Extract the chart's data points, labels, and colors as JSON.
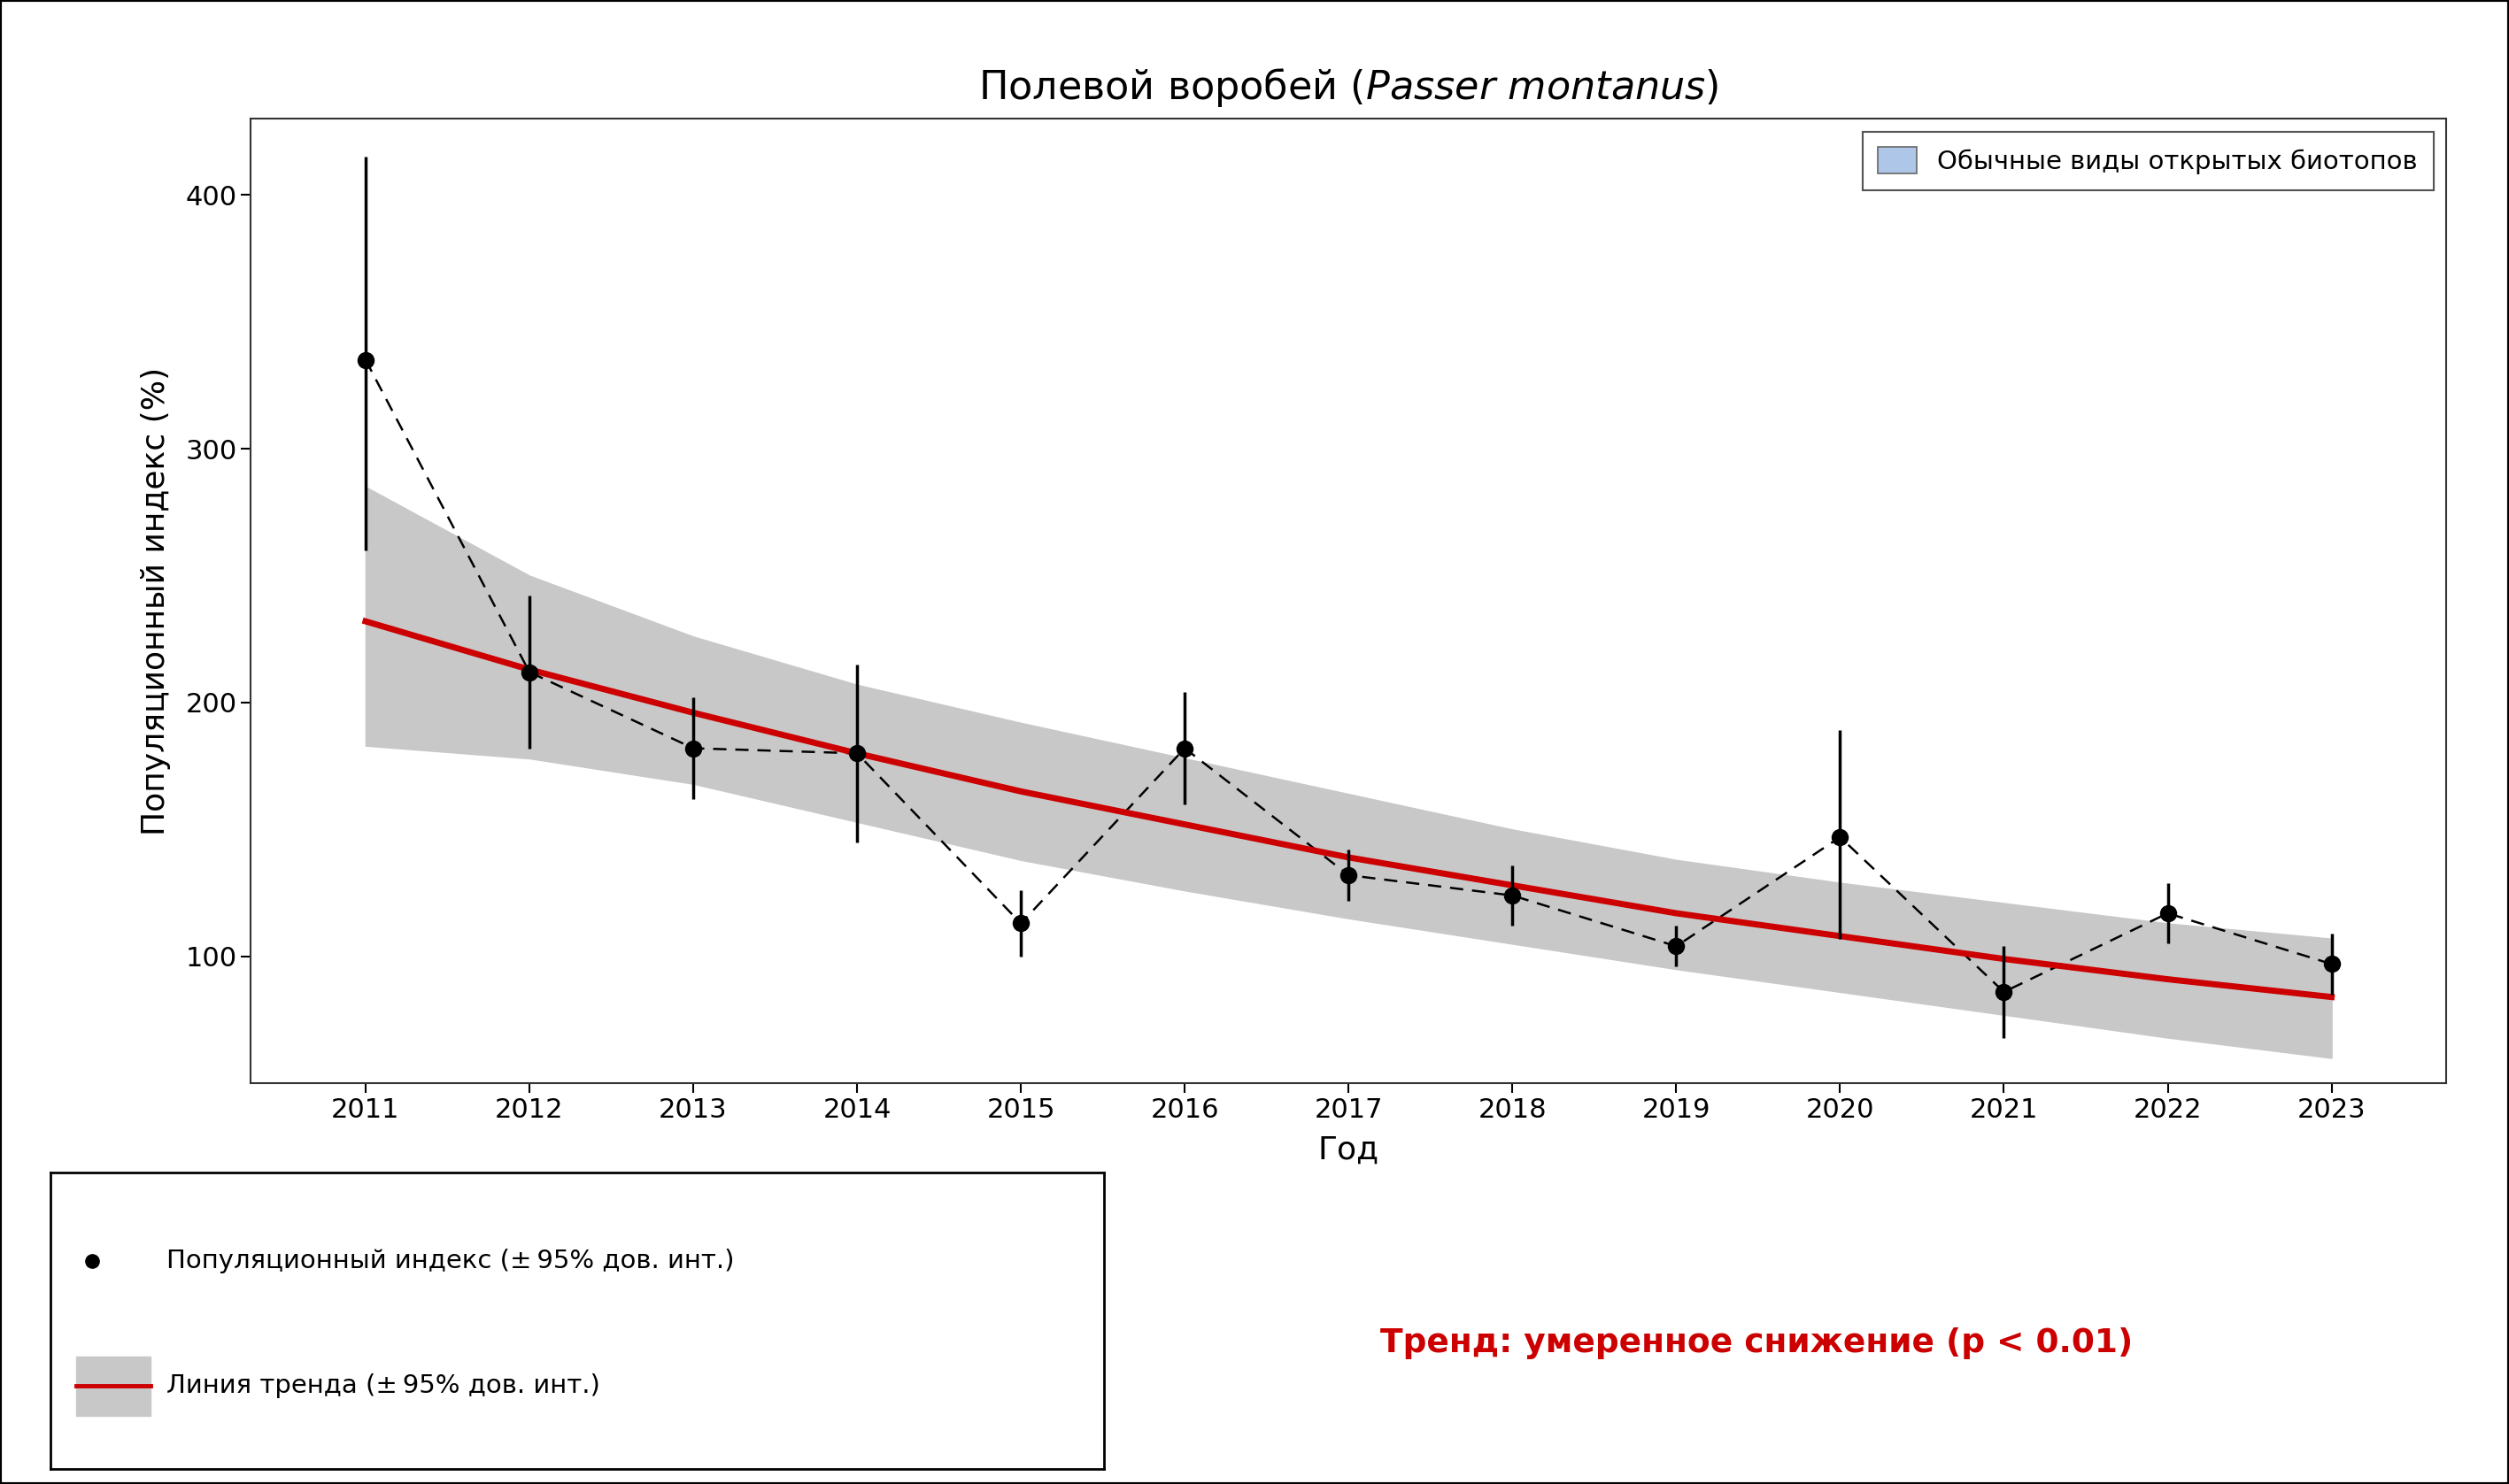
{
  "xlabel": "Год",
  "ylabel": "Популяционный индекс (%)",
  "years": [
    2011,
    2012,
    2013,
    2014,
    2015,
    2016,
    2017,
    2018,
    2019,
    2020,
    2021,
    2022,
    2023
  ],
  "values": [
    335,
    212,
    182,
    180,
    113,
    182,
    132,
    124,
    104,
    147,
    86,
    117,
    97
  ],
  "yerr_lower": [
    75,
    30,
    20,
    35,
    13,
    22,
    10,
    12,
    8,
    40,
    18,
    12,
    12
  ],
  "yerr_upper": [
    80,
    30,
    20,
    35,
    13,
    22,
    10,
    12,
    8,
    42,
    18,
    12,
    12
  ],
  "trend_values": [
    232,
    213,
    196,
    180,
    165,
    152,
    139,
    128,
    117,
    108,
    99,
    91,
    84
  ],
  "trend_ci_low": [
    183,
    178,
    168,
    153,
    138,
    126,
    115,
    105,
    95,
    86,
    77,
    68,
    60
  ],
  "trend_ci_high": [
    285,
    250,
    226,
    207,
    192,
    178,
    164,
    150,
    138,
    129,
    121,
    113,
    107
  ],
  "ylim_low": 50,
  "ylim_high": 430,
  "yticks": [
    100,
    200,
    300,
    400
  ],
  "bg_color": "#ffffff",
  "plot_bg": "#ffffff",
  "trend_color": "#cc0000",
  "trend_ci_color": "#c8c8c8",
  "data_color": "#000000",
  "legend_box_color": "#aec6e8",
  "legend_text": "Обычные виды открытых биотопов",
  "legend1_label": "Популяционный индекс (± 95% дов. инт.)",
  "legend2_label": "Линия тренда (± 95% дов. инт.)",
  "trend_annotation": "Тренд: умеренное снижение (p < 0.01)",
  "tick_fontsize": 22,
  "label_fontsize": 26,
  "title_fontsize": 32,
  "legend_fontsize": 21,
  "annotation_fontsize": 27
}
